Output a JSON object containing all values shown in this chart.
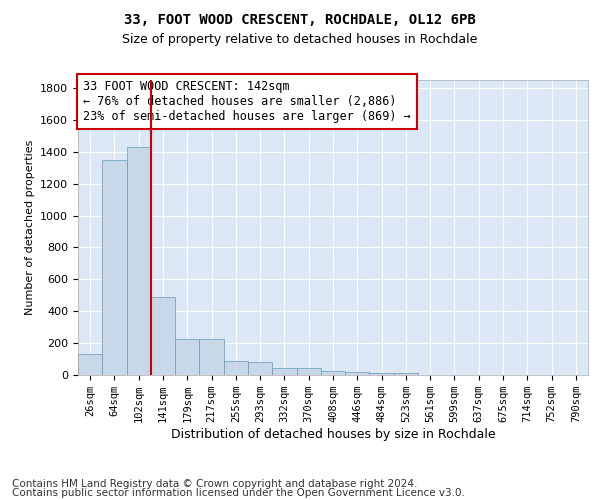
{
  "title": "33, FOOT WOOD CRESCENT, ROCHDALE, OL12 6PB",
  "subtitle": "Size of property relative to detached houses in Rochdale",
  "xlabel": "Distribution of detached houses by size in Rochdale",
  "ylabel": "Number of detached properties",
  "bar_color": "#c8d8e8",
  "bar_edge_color": "#6699bb",
  "background_color": "#dce8f5",
  "grid_color": "#ffffff",
  "categories": [
    "26sqm",
    "64sqm",
    "102sqm",
    "141sqm",
    "179sqm",
    "217sqm",
    "255sqm",
    "293sqm",
    "332sqm",
    "370sqm",
    "408sqm",
    "446sqm",
    "484sqm",
    "523sqm",
    "561sqm",
    "599sqm",
    "637sqm",
    "675sqm",
    "714sqm",
    "752sqm",
    "790sqm"
  ],
  "values": [
    130,
    1350,
    1430,
    490,
    225,
    225,
    85,
    80,
    45,
    45,
    25,
    18,
    15,
    15,
    0,
    0,
    0,
    0,
    0,
    0,
    0
  ],
  "property_bin_index": 2.5,
  "annotation_text": "33 FOOT WOOD CRESCENT: 142sqm\n← 76% of detached houses are smaller (2,886)\n23% of semi-detached houses are larger (869) →",
  "annotation_box_color": "#ffffff",
  "annotation_border_color": "#cc0000",
  "red_line_color": "#cc0000",
  "ylim": [
    0,
    1850
  ],
  "yticks": [
    0,
    200,
    400,
    600,
    800,
    1000,
    1200,
    1400,
    1600,
    1800
  ],
  "footer_line1": "Contains HM Land Registry data © Crown copyright and database right 2024.",
  "footer_line2": "Contains public sector information licensed under the Open Government Licence v3.0.",
  "title_fontsize": 10,
  "subtitle_fontsize": 9,
  "annotation_fontsize": 8.5,
  "ylabel_fontsize": 8,
  "xlabel_fontsize": 9,
  "footer_fontsize": 7.5,
  "tick_fontsize": 8,
  "xtick_fontsize": 7.5
}
